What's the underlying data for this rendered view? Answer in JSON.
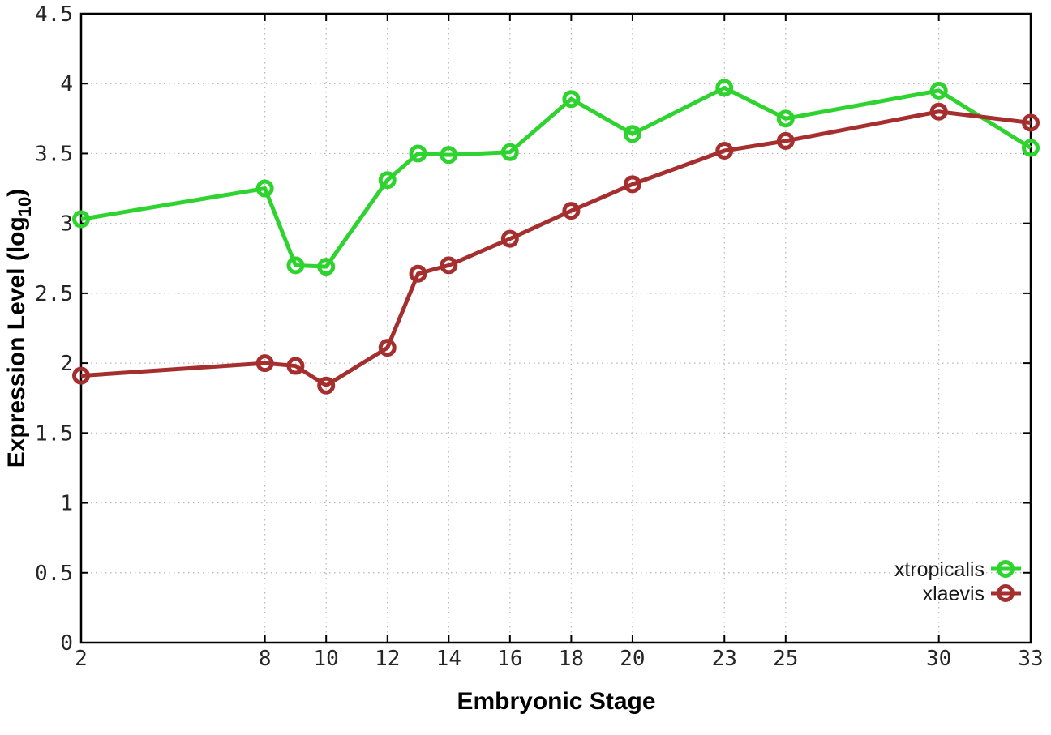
{
  "chart_data": {
    "type": "line",
    "title": "",
    "xlabel": "Embryonic Stage",
    "ylabel": "Expression Level (log10)",
    "ylabel_parts": {
      "main": "Expression Level (log",
      "sub": "10",
      "close": ")"
    },
    "x": [
      2,
      8,
      9,
      10,
      12,
      13,
      14,
      16,
      18,
      20,
      23,
      25,
      30,
      33
    ],
    "series": [
      {
        "name": "xtropicalis",
        "color": "#2fd32f",
        "values": [
          3.03,
          3.25,
          2.7,
          2.69,
          3.31,
          3.5,
          3.49,
          3.51,
          3.89,
          3.64,
          3.97,
          3.75,
          3.95,
          3.54
        ]
      },
      {
        "name": "xlaevis",
        "color": "#a52f2f",
        "values": [
          1.91,
          2.0,
          1.98,
          1.84,
          2.11,
          2.64,
          2.7,
          2.89,
          3.09,
          3.28,
          3.52,
          3.59,
          3.8,
          3.72
        ]
      }
    ],
    "xlim": [
      2,
      33
    ],
    "ylim": [
      0,
      4.5
    ],
    "x_ticks": [
      2,
      8,
      10,
      12,
      14,
      16,
      18,
      20,
      23,
      25,
      30,
      33
    ],
    "x_tick_labels": [
      "2",
      "8",
      "10",
      "12",
      "14",
      "16",
      "18",
      "20",
      "23",
      "25",
      "30",
      "33"
    ],
    "y_ticks": [
      0,
      0.5,
      1,
      1.5,
      2,
      2.5,
      3,
      3.5,
      4,
      4.5
    ],
    "y_tick_labels": [
      "0",
      "0.5",
      "1",
      "1.5",
      "2",
      "2.5",
      "3",
      "3.5",
      "4",
      "4.5"
    ],
    "grid": true,
    "legend_position": "bottom-right",
    "legend_entries": [
      "xtropicalis",
      "xlaevis"
    ]
  },
  "colors": {
    "background": "#ffffff",
    "plot_border": "#000000",
    "grid": "#b5b5b5",
    "tick": "#000000",
    "tick_label": "#262626",
    "axis_title": "#000000",
    "legend_text": "#1a1a1a"
  }
}
